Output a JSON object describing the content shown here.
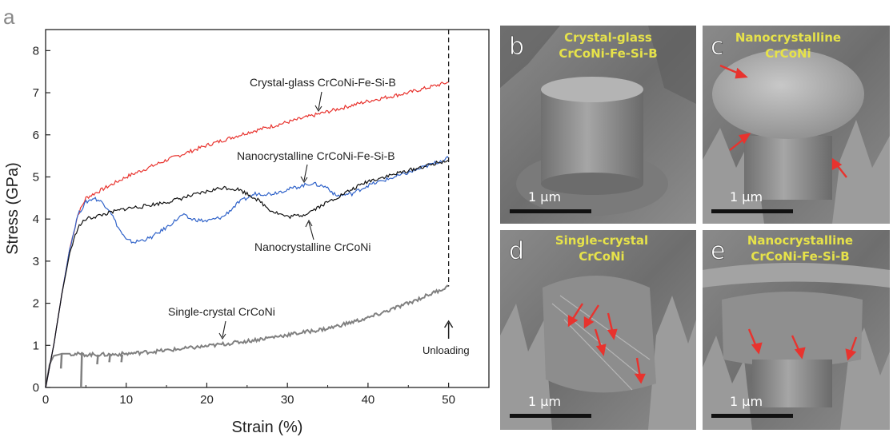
{
  "figure": {
    "panel_a_label": "a",
    "sem_panels": [
      {
        "letter": "b",
        "caption": [
          "Crystal-glass",
          "CrCoNi-Fe-Si-B"
        ],
        "scale_label": "1 μm"
      },
      {
        "letter": "c",
        "caption": [
          "Nanocrystalline",
          "CrCoNi"
        ],
        "scale_label": "1 μm"
      },
      {
        "letter": "d",
        "caption": [
          "Single-crystal",
          "CrCoNi"
        ],
        "scale_label": "1 μm"
      },
      {
        "letter": "e",
        "caption": [
          "Nanocrystalline",
          "CrCoNi-Fe-Si-B"
        ],
        "scale_label": "1 μm"
      }
    ],
    "colors": {
      "crystal_glass": "#e8332e",
      "nano_fesib": "#2f62c9",
      "nano_crconi": "#111111",
      "single_crystal": "#808080",
      "sem_caption": "#e6e24a",
      "arrow": "#e8332e"
    }
  },
  "chart_data": {
    "type": "line",
    "xlabel": "Strain (%)",
    "ylabel": "Stress (GPa)",
    "xlim": [
      0,
      55
    ],
    "ylim": [
      0,
      8.5
    ],
    "xticks": [
      0,
      10,
      20,
      30,
      40,
      50
    ],
    "yticks": [
      0,
      1,
      2,
      3,
      4,
      5,
      6,
      7,
      8
    ],
    "grid": false,
    "series": [
      {
        "name": "Crystal-glass CrCoNi-Fe-Si-B",
        "color": "#e8332e",
        "x": [
          0,
          1,
          2,
          3,
          4,
          5,
          7,
          10,
          15,
          20,
          25,
          30,
          35,
          40,
          45,
          50
        ],
        "y": [
          0,
          1.0,
          2.2,
          3.3,
          4.1,
          4.5,
          4.7,
          5.0,
          5.4,
          5.75,
          6.05,
          6.3,
          6.55,
          6.8,
          7.0,
          7.25
        ]
      },
      {
        "name": "Nanocrystalline CrCoNi-Fe-Si-B",
        "color": "#2f62c9",
        "x": [
          0,
          1,
          2,
          3,
          4,
          5,
          6,
          7,
          8,
          9,
          10,
          11,
          13,
          15,
          17,
          18,
          20,
          22,
          24,
          26,
          28,
          30,
          33,
          35,
          36,
          38,
          40,
          45,
          50
        ],
        "y": [
          0,
          1.0,
          2.2,
          3.3,
          4.1,
          4.4,
          4.5,
          4.4,
          4.2,
          3.8,
          3.5,
          3.45,
          3.55,
          3.8,
          4.1,
          4.0,
          3.95,
          4.05,
          4.4,
          4.6,
          4.6,
          4.7,
          4.85,
          4.75,
          4.55,
          4.6,
          4.8,
          5.1,
          5.45
        ]
      },
      {
        "name": "Nanocrystalline CrCoNi",
        "color": "#111111",
        "x": [
          0,
          1,
          2,
          3,
          4,
          5,
          6,
          8,
          10,
          12,
          15,
          18,
          20,
          22,
          24,
          26,
          28,
          30,
          32,
          34,
          36,
          38,
          40,
          45,
          50
        ],
        "y": [
          0,
          1.0,
          2.2,
          3.2,
          3.8,
          4.0,
          4.05,
          4.15,
          4.25,
          4.3,
          4.4,
          4.55,
          4.65,
          4.75,
          4.7,
          4.5,
          4.2,
          4.05,
          4.1,
          4.3,
          4.5,
          4.7,
          4.9,
          5.15,
          5.4
        ]
      },
      {
        "name": "Single-crystal CrCoNi",
        "color": "#808080",
        "x": [
          0,
          0.5,
          1,
          2,
          3,
          5,
          8,
          10,
          15,
          20,
          25,
          30,
          35,
          40,
          45,
          50
        ],
        "y": [
          0,
          0.55,
          0.75,
          0.8,
          0.8,
          0.78,
          0.78,
          0.8,
          0.88,
          0.98,
          1.1,
          1.25,
          1.4,
          1.65,
          2.0,
          2.4
        ]
      }
    ],
    "annotations": [
      {
        "text": "Crystal-glass CrCoNi-Fe-Si-B"
      },
      {
        "text": "Nanocrystalline CrCoNi-Fe-Si-B"
      },
      {
        "text": "Nanocrystalline CrCoNi"
      },
      {
        "text": "Single-crystal CrCoNi"
      },
      {
        "text": "Unloading"
      }
    ]
  }
}
